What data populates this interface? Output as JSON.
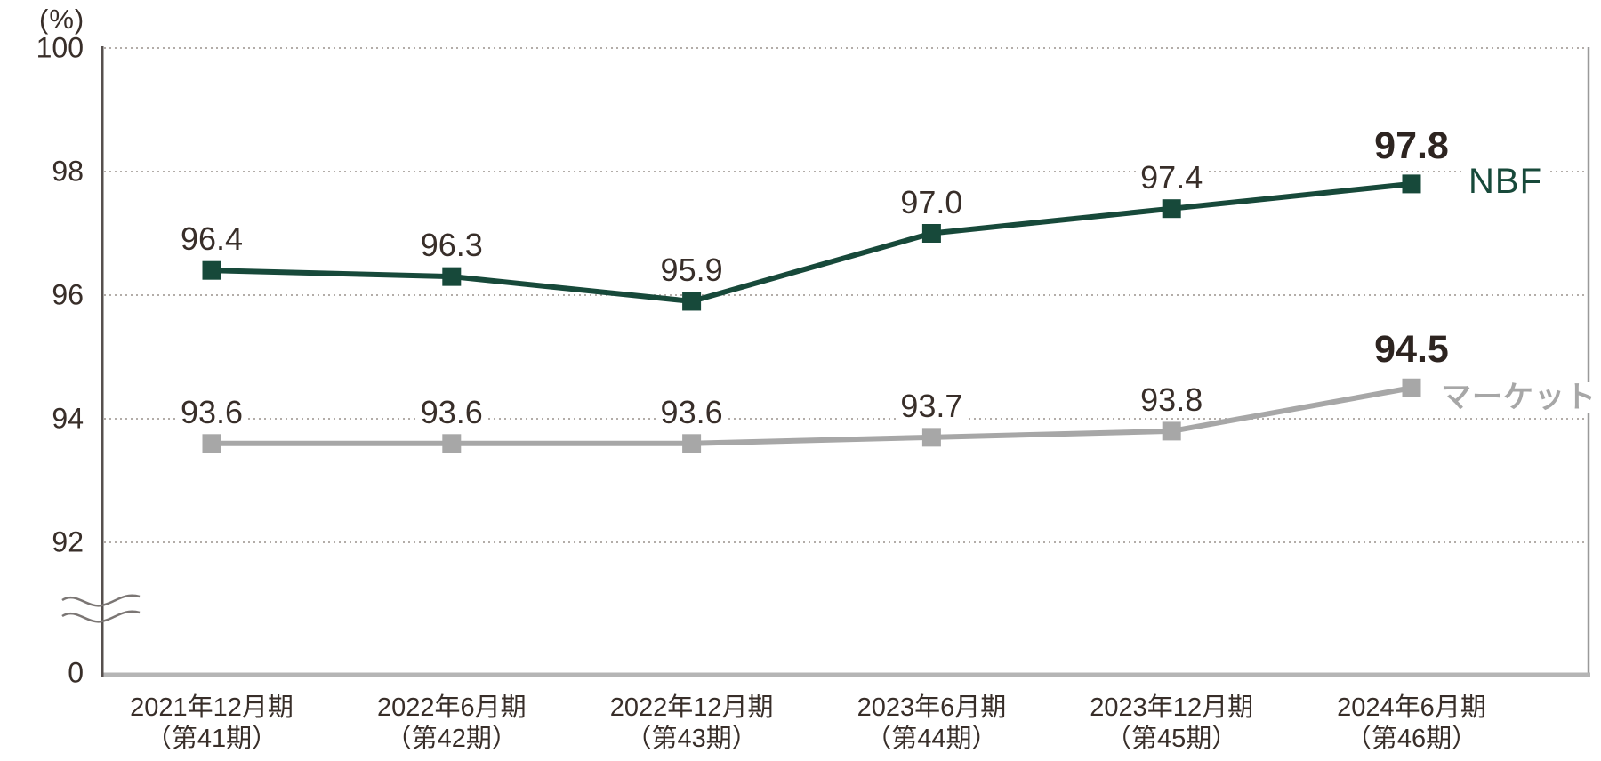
{
  "chart": {
    "unit_label": "(%)",
    "colors": {
      "nbf_green": "#17493a",
      "market_gray": "#a7a7a7",
      "label_dark": "#382e29",
      "label_dark_bold": "#2d2420",
      "grid_dotted": "#b3ada9",
      "axis_dark": "#56504e",
      "axis_light": "#b5b5b5",
      "break_wave": "#7b7674"
    }
  },
  "chart_data": {
    "type": "line",
    "unit": "%",
    "grid": "horizontal dotted",
    "legend_position": "line-end labels (right side)",
    "y_axis": {
      "unit_label": "(%)",
      "axis_break": true,
      "range_shown": [
        92,
        100
      ],
      "ticks": [
        {
          "value": 100,
          "label": "100"
        },
        {
          "value": 98,
          "label": "98"
        },
        {
          "value": 96,
          "label": "96"
        },
        {
          "value": 94,
          "label": "94"
        },
        {
          "value": 92,
          "label": "92"
        },
        {
          "value": 0,
          "label": "0"
        }
      ]
    },
    "categories": [
      {
        "line1": "2021年12月期",
        "line2": "（第41期）"
      },
      {
        "line1": "2022年6月期",
        "line2": "（第42期）"
      },
      {
        "line1": "2022年12月期",
        "line2": "（第43期）"
      },
      {
        "line1": "2023年6月期",
        "line2": "（第44期）"
      },
      {
        "line1": "2023年12月期",
        "line2": "（第45期）"
      },
      {
        "line1": "2024年6月期",
        "line2": "（第46期）"
      }
    ],
    "series": [
      {
        "name": "マーケット",
        "color": "#a7a7a7",
        "values": [
          93.6,
          93.6,
          93.6,
          93.7,
          93.8,
          94.5
        ],
        "labels": [
          "93.6",
          "93.6",
          "93.6",
          "93.7",
          "93.8",
          "94.5"
        ]
      },
      {
        "name": "NBF",
        "color": "#17493a",
        "values": [
          96.4,
          96.3,
          95.9,
          97.0,
          97.4,
          97.8
        ],
        "labels": [
          "96.4",
          "96.3",
          "95.9",
          "97.0",
          "97.4",
          "97.8"
        ]
      }
    ],
    "emphasized_point_index": 5
  }
}
